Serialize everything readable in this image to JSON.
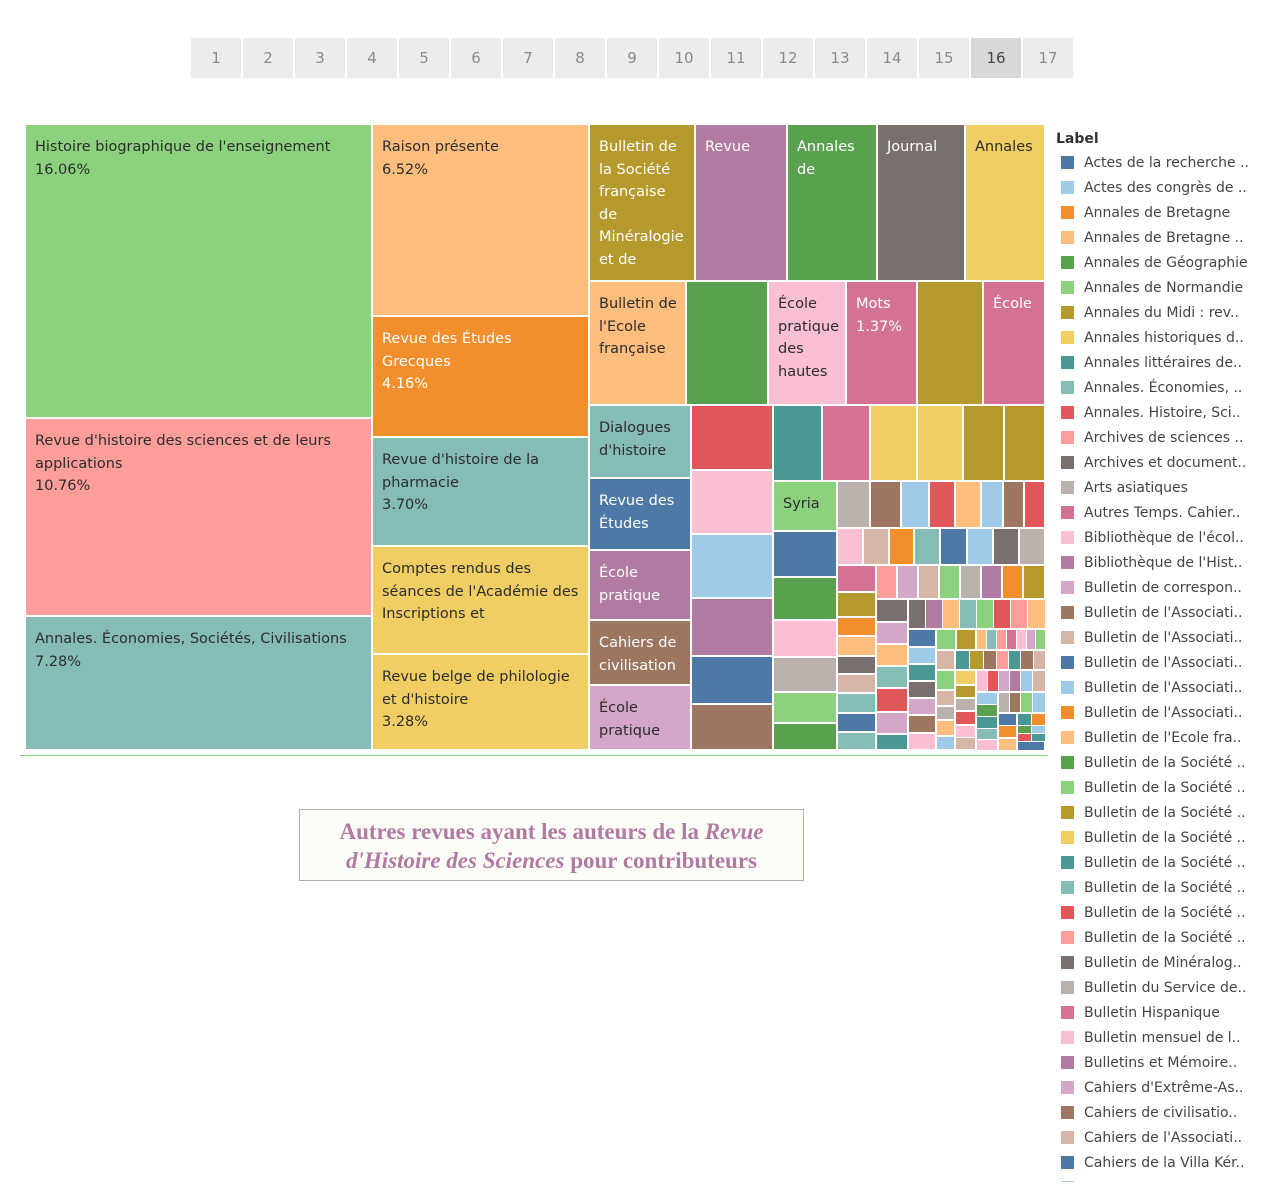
{
  "pager": {
    "pages": [
      "1",
      "2",
      "3",
      "4",
      "5",
      "6",
      "7",
      "8",
      "9",
      "10",
      "11",
      "12",
      "13",
      "14",
      "15",
      "16",
      "17"
    ],
    "active": "16"
  },
  "caption": {
    "part1": "Autres revues ayant les auteurs de la ",
    "italic": "Revue d'Histoire des Sciences",
    "part2": " pour contributeurs"
  },
  "colors": {
    "blue": "#4e79a7",
    "lightblue": "#a0cbe8",
    "orange": "#f28e2b",
    "lightorange": "#ffbe7d",
    "green": "#59a14f",
    "lightgreen": "#8cd17d",
    "olive": "#b6992d",
    "yellow": "#f1ce63",
    "teal": "#499894",
    "lightteal": "#86bcb6",
    "red": "#e15759",
    "salmon": "#ff9d9a",
    "gray": "#79706e",
    "lightgray": "#bab0ac",
    "pink": "#d37295",
    "lightpink": "#fabfd2",
    "purple": "#b07aa1",
    "lavender": "#d4a6c8",
    "brown": "#9d7660",
    "tan": "#d7b5a6"
  },
  "legend": {
    "title": "Label",
    "items": [
      {
        "label": "Actes de la recherche ..",
        "color": "#4e79a7"
      },
      {
        "label": "Actes des congrès de ..",
        "color": "#a0cbe8"
      },
      {
        "label": "Annales de Bretagne",
        "color": "#f28e2b"
      },
      {
        "label": "Annales de Bretagne ..",
        "color": "#ffbe7d"
      },
      {
        "label": "Annales de Géographie",
        "color": "#59a14f"
      },
      {
        "label": "Annales de Normandie",
        "color": "#8cd17d"
      },
      {
        "label": "Annales du Midi : rev..",
        "color": "#b6992d"
      },
      {
        "label": "Annales historiques d..",
        "color": "#f1ce63"
      },
      {
        "label": "Annales littéraires de..",
        "color": "#499894"
      },
      {
        "label": "Annales. Économies, ..",
        "color": "#86bcb6"
      },
      {
        "label": "Annales. Histoire, Sci..",
        "color": "#e15759"
      },
      {
        "label": "Archives de sciences ..",
        "color": "#ff9d9a"
      },
      {
        "label": "Archives et document..",
        "color": "#79706e"
      },
      {
        "label": "Arts asiatiques",
        "color": "#bab0ac"
      },
      {
        "label": "Autres Temps. Cahier..",
        "color": "#d37295"
      },
      {
        "label": "Bibliothèque de l'écol..",
        "color": "#fabfd2"
      },
      {
        "label": "Bibliothèque de l'Hist..",
        "color": "#b07aa1"
      },
      {
        "label": "Bulletin de correspon..",
        "color": "#d4a6c8"
      },
      {
        "label": "Bulletin de l'Associati..",
        "color": "#9d7660"
      },
      {
        "label": "Bulletin de l'Associati..",
        "color": "#d7b5a6"
      },
      {
        "label": "Bulletin de l'Associati..",
        "color": "#4e79a7"
      },
      {
        "label": "Bulletin de l'Associati..",
        "color": "#a0cbe8"
      },
      {
        "label": "Bulletin de l'Associati..",
        "color": "#f28e2b"
      },
      {
        "label": "Bulletin de l'Ecole fra..",
        "color": "#ffbe7d"
      },
      {
        "label": "Bulletin de la Société ..",
        "color": "#59a14f"
      },
      {
        "label": "Bulletin de la Société ..",
        "color": "#8cd17d"
      },
      {
        "label": "Bulletin de la Société ..",
        "color": "#b6992d"
      },
      {
        "label": "Bulletin de la Société ..",
        "color": "#f1ce63"
      },
      {
        "label": "Bulletin de la Société ..",
        "color": "#499894"
      },
      {
        "label": "Bulletin de la Société ..",
        "color": "#86bcb6"
      },
      {
        "label": "Bulletin de la Société ..",
        "color": "#e15759"
      },
      {
        "label": "Bulletin de la Société ..",
        "color": "#ff9d9a"
      },
      {
        "label": "Bulletin de Minéralog..",
        "color": "#79706e"
      },
      {
        "label": "Bulletin du Service de..",
        "color": "#bab0ac"
      },
      {
        "label": "Bulletin Hispanique",
        "color": "#d37295"
      },
      {
        "label": "Bulletin mensuel de l..",
        "color": "#fabfd2"
      },
      {
        "label": "Bulletins et Mémoire..",
        "color": "#b07aa1"
      },
      {
        "label": "Cahiers d'Extrême-As..",
        "color": "#d4a6c8"
      },
      {
        "label": "Cahiers de civilisatio..",
        "color": "#9d7660"
      },
      {
        "label": "Cahiers de l'Associati..",
        "color": "#d7b5a6"
      },
      {
        "label": "Cahiers de la Villa Kér..",
        "color": "#4e79a7"
      },
      {
        "label": "",
        "color": "#a0cbe8"
      }
    ]
  },
  "chart_data": {
    "type": "treemap",
    "legend_title": "Label",
    "labeled": [
      {
        "label": "Histoire biographique de l'enseignement",
        "value_pct": 16.06,
        "color": "#8cd17d"
      },
      {
        "label": "Revue d'histoire des sciences et de leurs applications",
        "value_pct": 10.76,
        "color": "#ff9d9a"
      },
      {
        "label": "Annales. Économies, Sociétés, Civilisations",
        "value_pct": 7.28,
        "color": "#86bcb6"
      },
      {
        "label": "Raison présente",
        "value_pct": 6.52,
        "color": "#ffbe7d"
      },
      {
        "label": "Revue des Études Grecques",
        "value_pct": 4.16,
        "color": "#f28e2b"
      },
      {
        "label": "Revue d'histoire de la pharmacie",
        "value_pct": 3.7,
        "color": "#86bcb6"
      },
      {
        "label": "Comptes rendus des séances de l'Académie des Inscriptions et",
        "value_pct": null,
        "color": "#f1ce63"
      },
      {
        "label": "Revue belge de philologie et d'histoire",
        "value_pct": 3.28,
        "color": "#f1ce63"
      },
      {
        "label": "Bulletin de la Société française de Minéralogie et de",
        "value_pct": null,
        "color": "#b6992d"
      },
      {
        "label": "Revue",
        "value_pct": null,
        "color": "#b07aa1"
      },
      {
        "label": "Annales de",
        "value_pct": null,
        "color": "#59a14f"
      },
      {
        "label": "Journal",
        "value_pct": null,
        "color": "#79706e"
      },
      {
        "label": "Annales",
        "value_pct": null,
        "color": "#f1ce63"
      },
      {
        "label": "Bulletin de l'Ecole française",
        "value_pct": null,
        "color": "#ffbe7d"
      },
      {
        "label": "École pratique des hautes",
        "value_pct": null,
        "color": "#fabfd2"
      },
      {
        "label": "Mots",
        "value_pct": 1.37,
        "color": "#d37295"
      },
      {
        "label": "École",
        "value_pct": null,
        "color": "#d37295"
      },
      {
        "label": "Dialogues d'histoire",
        "value_pct": null,
        "color": "#86bcb6"
      },
      {
        "label": "Revue des Études",
        "value_pct": null,
        "color": "#4e79a7"
      },
      {
        "label": "École pratique",
        "value_pct": null,
        "color": "#b07aa1"
      },
      {
        "label": "Cahiers de civilisation",
        "value_pct": null,
        "color": "#9d7660"
      },
      {
        "label": "École pratique",
        "value_pct": null,
        "color": "#d4a6c8"
      },
      {
        "label": "Syria",
        "value_pct": null,
        "color": "#8cd17d"
      }
    ]
  }
}
